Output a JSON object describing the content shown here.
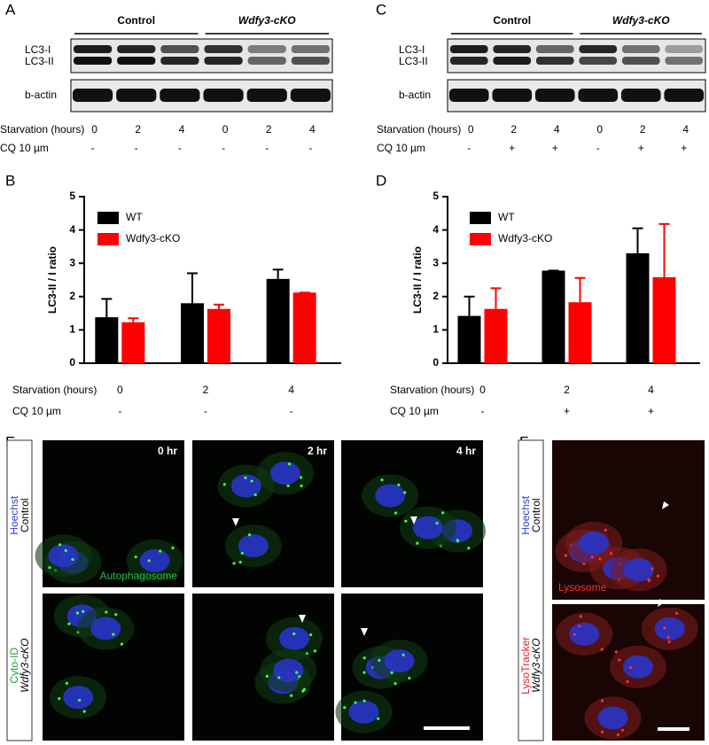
{
  "panel_labels": [
    "A",
    "B",
    "C",
    "D",
    "E",
    "F"
  ],
  "blot_a": {
    "groups": [
      "Control",
      "Wdfy3-cKO"
    ],
    "bands": [
      "LC3-I",
      "LC3-II"
    ],
    "loading": "b-actin",
    "conditions": [
      {
        "label": "Starvation (hours)",
        "values": [
          "0",
          "2",
          "4",
          "0",
          "2",
          "4"
        ]
      },
      {
        "label": "CQ 10 µm",
        "values": [
          "-",
          "-",
          "-",
          "-",
          "-",
          "-"
        ]
      }
    ]
  },
  "blot_c": {
    "groups": [
      "Control",
      "Wdfy3-cKO"
    ],
    "bands": [
      "LC3-I",
      "LC3-II"
    ],
    "loading": "b-actin",
    "conditions": [
      {
        "label": "Starvation (hours)",
        "values": [
          "0",
          "2",
          "4",
          "0",
          "2",
          "4"
        ]
      },
      {
        "label": "CQ 10 µm",
        "values": [
          "-",
          "+",
          "+",
          "-",
          "+",
          "+"
        ]
      }
    ]
  },
  "chart_data": [
    {
      "type": "bar",
      "ylabel": "LC3-II / I ratio",
      "categories": [
        "0",
        "2",
        "4"
      ],
      "xlabel": "Starvation (hours)",
      "second_row": {
        "label": "CQ 10 µm",
        "values": [
          "-",
          "-",
          "-"
        ]
      },
      "ylim": [
        0,
        5
      ],
      "yticks": [
        0,
        1,
        2,
        3,
        4,
        5
      ],
      "series": [
        {
          "name": "WT",
          "color": "#000000",
          "values": [
            1.38,
            1.8,
            2.53
          ],
          "errors": [
            0.55,
            0.9,
            0.28
          ]
        },
        {
          "name": "Wdfy3-cKO",
          "color": "#ff0000",
          "values": [
            1.23,
            1.63,
            2.12
          ],
          "errors": [
            0.12,
            0.13,
            0
          ]
        }
      ]
    },
    {
      "type": "bar",
      "ylabel": "LC3-II / I ratio",
      "categories": [
        "0",
        "2",
        "4"
      ],
      "xlabel": "Starvation (hours)",
      "second_row": {
        "label": "CQ 10 µm",
        "values": [
          "-",
          "+",
          "+"
        ]
      },
      "ylim": [
        0,
        5
      ],
      "yticks": [
        0,
        1,
        2,
        3,
        4,
        5
      ],
      "series": [
        {
          "name": "WT",
          "color": "#000000",
          "values": [
            1.42,
            2.78,
            3.3
          ],
          "errors": [
            0.58,
            0,
            0.75
          ]
        },
        {
          "name": "Wdfy3-cKO",
          "color": "#ff0000",
          "values": [
            1.63,
            1.83,
            2.58
          ],
          "errors": [
            0.62,
            0.73,
            1.6
          ]
        }
      ]
    }
  ],
  "imaging_e": {
    "stains": [
      "Hoechst",
      "Cyto-ID"
    ],
    "rows": [
      "Control",
      "Wdfy3-cKO"
    ],
    "times": [
      "0 hr",
      "2 hr",
      "4 hr"
    ],
    "marker": "Autophagosome"
  },
  "imaging_f": {
    "stains": [
      "Hoechst",
      "LysoTracker"
    ],
    "rows": [
      "Control",
      "Wdfy3-cKO"
    ],
    "marker": "Lysosome"
  }
}
